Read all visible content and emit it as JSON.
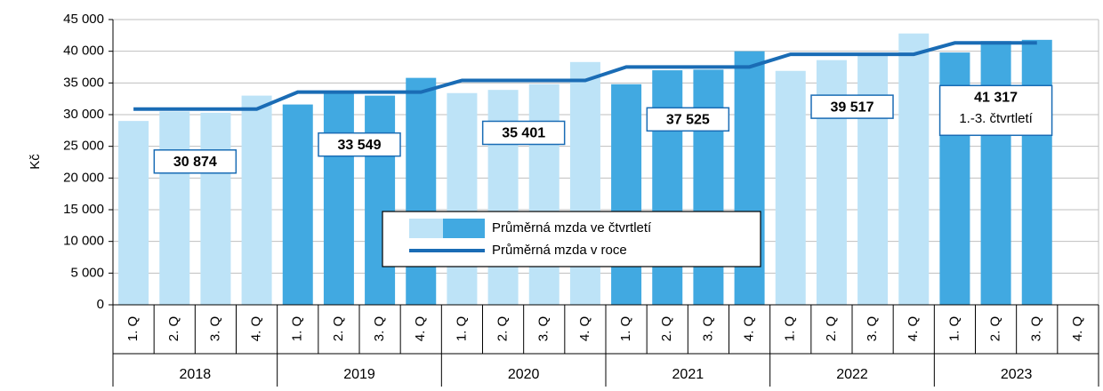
{
  "chart_data": {
    "type": "bar-line",
    "y_label": "Kč",
    "categories": [
      "1. Q",
      "2. Q",
      "3. Q",
      "4. Q",
      "1. Q",
      "2. Q",
      "3. Q",
      "4. Q",
      "1. Q",
      "2. Q",
      "3. Q",
      "4. Q",
      "1. Q",
      "2. Q",
      "3. Q",
      "4. Q",
      "1. Q",
      "2. Q",
      "3. Q",
      "4. Q",
      "1. Q",
      "2. Q",
      "3. Q",
      "4. Q"
    ],
    "x_groups": [
      "2018",
      "2019",
      "2020",
      "2021",
      "2022",
      "2023"
    ],
    "ylim": [
      0,
      45000
    ],
    "yticks": [
      0,
      {
        "value": 5000,
        "label": "5 000"
      },
      {
        "value": 10000,
        "label": "10 000"
      },
      {
        "value": 15000,
        "label": "15 000"
      },
      {
        "value": 20000,
        "label": "20 000"
      },
      {
        "value": 25000,
        "label": "25 000"
      },
      {
        "value": 30000,
        "label": "30 000"
      },
      {
        "value": 35000,
        "label": "35 000"
      },
      {
        "value": 40000,
        "label": "40 000"
      },
      {
        "value": 45000,
        "label": "45 000"
      }
    ],
    "grid": true,
    "series": [
      {
        "name": "Průměrná mzda ve čtvrtletí",
        "type": "bar",
        "colors": [
          "#bde3f7",
          "#41a9e1"
        ],
        "values": [
          29000,
          30500,
          30300,
          33000,
          31600,
          33300,
          33000,
          35800,
          33400,
          33900,
          34800,
          38300,
          34800,
          37000,
          37100,
          40000,
          36900,
          38600,
          39300,
          42800,
          39800,
          41600,
          41800,
          null
        ]
      },
      {
        "name": "Průměrná mzda v roce",
        "type": "line",
        "color": "#1a6cb5",
        "values": [
          30874,
          30874,
          30874,
          30874,
          33549,
          33549,
          33549,
          33549,
          35401,
          35401,
          35401,
          35401,
          37525,
          37525,
          37525,
          37525,
          39517,
          39517,
          39517,
          39517,
          41317,
          41317,
          41317,
          null
        ],
        "value_labels": [
          null,
          "30 874",
          null,
          null,
          null,
          "33 549",
          null,
          null,
          null,
          "35 401",
          null,
          null,
          null,
          "37 525",
          null,
          null,
          null,
          "39 517",
          null,
          null,
          null,
          "41 317",
          null,
          null
        ]
      }
    ],
    "annotations": [
      {
        "index": 21,
        "text": "1.-3. čtvrtletí"
      }
    ],
    "legend": "center"
  }
}
